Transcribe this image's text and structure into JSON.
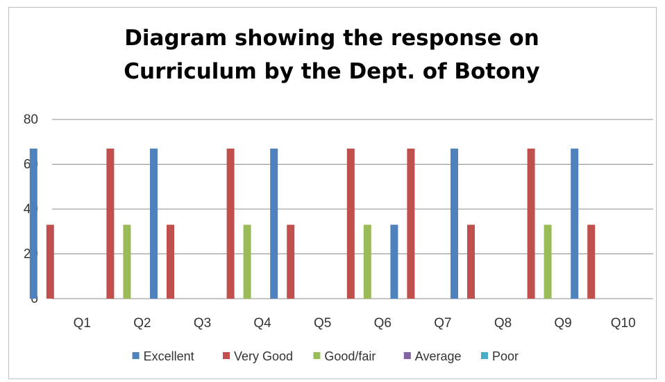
{
  "chart_data": {
    "type": "bar",
    "title": "Diagram showing the response on\nCurriculum by the Dept. of Botony",
    "xlabel": "",
    "ylabel": "",
    "ylim": [
      0,
      80
    ],
    "yticks": [
      0,
      20,
      40,
      60,
      80
    ],
    "grid": true,
    "legend_position": "bottom",
    "categories": [
      "Q1",
      "Q2",
      "Q3",
      "Q4",
      "Q5",
      "Q6",
      "Q7",
      "Q8",
      "Q9",
      "Q10"
    ],
    "series": [
      {
        "name": "Excellent",
        "color": "#4f81bd",
        "values": [
          67,
          0,
          67,
          0,
          67,
          0,
          33,
          67,
          0,
          67
        ]
      },
      {
        "name": "Very Good",
        "color": "#c0504d",
        "values": [
          33,
          67,
          33,
          67,
          33,
          67,
          67,
          33,
          67,
          33
        ]
      },
      {
        "name": "Good/fair",
        "color": "#9bbb59",
        "values": [
          0,
          33,
          0,
          33,
          0,
          33,
          0,
          0,
          33,
          0
        ]
      },
      {
        "name": "Average",
        "color": "#8064a2",
        "values": [
          0,
          0,
          0,
          0,
          0,
          0,
          0,
          0,
          0,
          0
        ]
      },
      {
        "name": "Poor",
        "color": "#4bacc6",
        "values": [
          0,
          0,
          0,
          0,
          0,
          0,
          0,
          0,
          0,
          0
        ]
      }
    ]
  }
}
